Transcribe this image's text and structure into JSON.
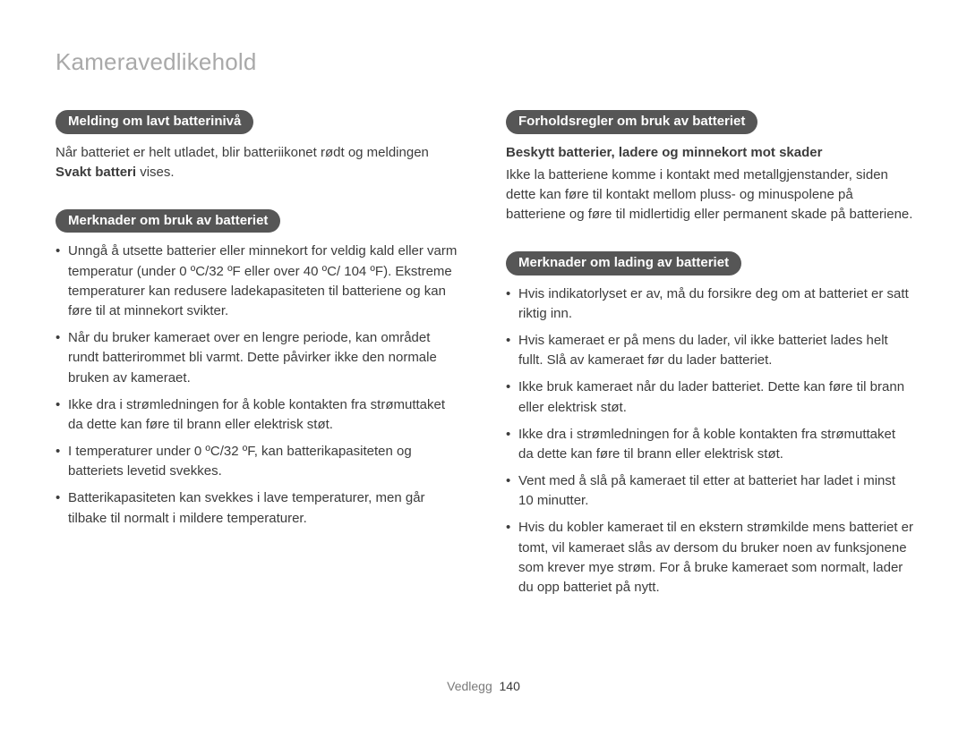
{
  "page": {
    "title": "Kameravedlikehold",
    "footer_label": "Vedlegg",
    "footer_number": "140"
  },
  "left": {
    "pill1": "Melding om lavt batterinivå",
    "para1_pre": "Når batteriet er helt utladet, blir batteriikonet rødt og meldingen ",
    "para1_bold": "Svakt batteri",
    "para1_post": " vises.",
    "pill2": "Merknader om bruk av batteriet",
    "items": [
      "Unngå å utsette batterier eller minnekort for veldig kald eller varm temperatur (under 0 ºC/32 ºF eller over 40 ºC/ 104 ºF). Ekstreme temperaturer kan redusere ladekapasiteten til batteriene og kan føre til at minnekort svikter.",
      "Når du bruker kameraet over en lengre periode, kan området rundt batterirommet bli varmt. Dette påvirker ikke den normale bruken av kameraet.",
      "Ikke dra i strømledningen for å koble kontakten fra strømuttaket da dette kan føre til brann eller elektrisk støt.",
      "I temperaturer under 0 ºC/32 ºF, kan batterikapasiteten og batteriets levetid svekkes.",
      "Batterikapasiteten kan svekkes i lave temperaturer, men går tilbake til normalt i mildere temperaturer."
    ]
  },
  "right": {
    "pill1": "Forholdsregler om bruk av batteriet",
    "subhead1": "Beskytt batterier, ladere og minnekort mot skader",
    "para1": "Ikke la batteriene komme i kontakt med metallgjenstander, siden dette kan føre til kontakt mellom pluss- og minuspolene på batteriene og føre til midlertidig eller permanent skade på batteriene.",
    "pill2": "Merknader om lading av batteriet",
    "items": [
      "Hvis indikatorlyset er av, må du forsikre deg om at batteriet er satt riktig inn.",
      "Hvis kameraet er på mens du lader, vil ikke batteriet lades helt fullt. Slå av kameraet før du lader batteriet.",
      "Ikke bruk kameraet når du lader batteriet. Dette kan føre til brann eller elektrisk støt.",
      "Ikke dra i strømledningen for å koble kontakten fra strømuttaket da dette kan føre til brann eller elektrisk støt.",
      "Vent med å slå på kameraet til etter at batteriet har ladet i minst 10 minutter.",
      "Hvis du kobler kameraet til en ekstern strømkilde mens batteriet er tomt, vil kameraet slås av dersom du bruker noen av funksjonene som krever mye strøm. For å bruke kameraet som normalt, lader du opp batteriet på nytt."
    ]
  }
}
